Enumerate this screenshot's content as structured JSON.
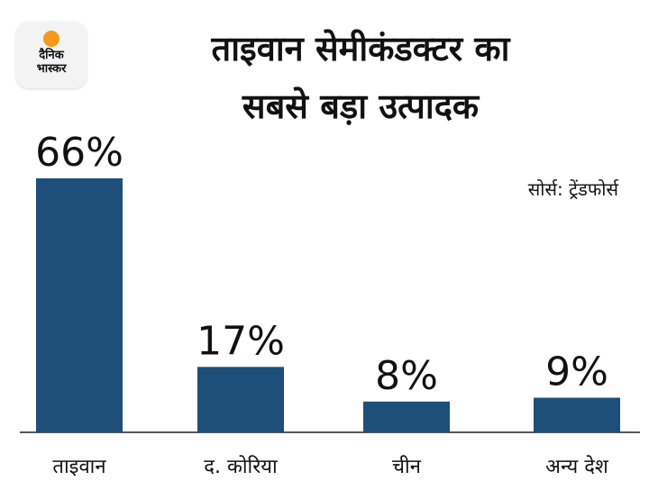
{
  "logo": {
    "line1": "दैनिक",
    "line2": "भास्कर",
    "sun_color": "#f39a1e"
  },
  "header": {
    "title_line1": "ताइवान सेमीकंडक्टर का",
    "title_line2": "सबसे बड़ा उत्पादक"
  },
  "source": "सोर्स: ट्रेंडफोर्स",
  "chart_data": {
    "type": "bar",
    "title": "ताइवान सेमीकंडक्टर का सबसे बड़ा उत्पादक",
    "categories": [
      "ताइवान",
      "द. कोरिया",
      "चीन",
      "अन्य देश"
    ],
    "values": [
      66,
      17,
      8,
      9
    ],
    "value_labels": [
      "66%",
      "17%",
      "8%",
      "9%"
    ],
    "ylim": [
      0,
      66
    ],
    "grid": false,
    "bar_color": "#1d4f7a"
  }
}
